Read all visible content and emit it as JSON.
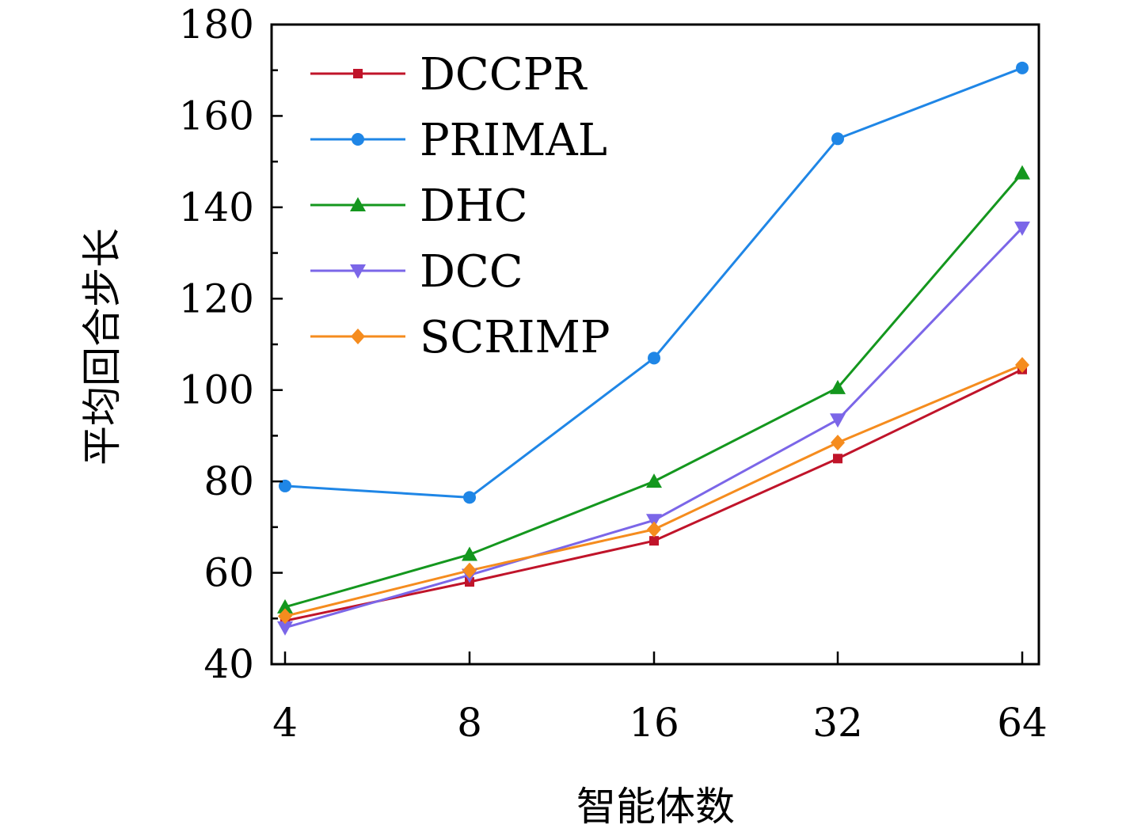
{
  "chart_data": {
    "type": "line",
    "xlabel": "智能体数",
    "ylabel": "平均回合步长",
    "x": [
      4,
      8,
      16,
      32,
      64
    ],
    "x_tick_labels": [
      "4",
      "8",
      "16",
      "32",
      "64"
    ],
    "y_ticks": [
      40,
      60,
      80,
      100,
      120,
      140,
      160,
      180
    ],
    "y_tick_labels": [
      "40",
      "60",
      "80",
      "100",
      "120",
      "140",
      "160",
      "180"
    ],
    "ylim": [
      40,
      180
    ],
    "x_scale": "log2",
    "grid": false,
    "legend_position": "top-left",
    "series": [
      {
        "name": "DCCPR",
        "color": "#c0142a",
        "marker": "square",
        "values": [
          49.5,
          58,
          67,
          85,
          104.5
        ]
      },
      {
        "name": "PRIMAL",
        "color": "#1f86e6",
        "marker": "circle",
        "values": [
          79,
          76.5,
          107,
          155,
          170.5
        ]
      },
      {
        "name": "DHC",
        "color": "#14971e",
        "marker": "triangle-up",
        "values": [
          52.5,
          64,
          80,
          100.5,
          147.5
        ]
      },
      {
        "name": "DCC",
        "color": "#7b66e8",
        "marker": "triangle-down",
        "values": [
          48,
          59.5,
          71.5,
          93.5,
          135.5
        ]
      },
      {
        "name": "SCRIMP",
        "color": "#f58c1e",
        "marker": "diamond",
        "values": [
          50.5,
          60.5,
          69.5,
          88.5,
          105.5
        ]
      }
    ]
  }
}
